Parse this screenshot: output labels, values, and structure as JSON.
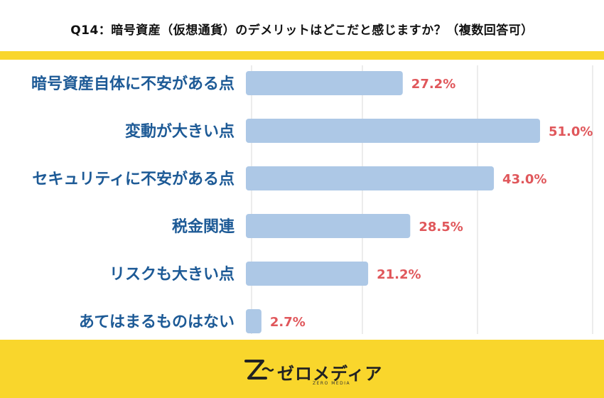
{
  "header": {
    "title": "Q14：暗号資産（仮想通貨）のデメリットはどこだと感じますか？（複数回答可）"
  },
  "brand": {
    "name": "ゼロメディア",
    "sub": "ZERO MEDIA"
  },
  "colors": {
    "accent_yellow": "#f9d62c",
    "bar": "#adc8e6",
    "category_text": "#1d5a96",
    "value_text": "#e0575b",
    "grid": "#d9d9d9"
  },
  "chart_data": {
    "type": "bar",
    "orientation": "horizontal",
    "title": "",
    "xlabel": "",
    "ylabel": "",
    "unit": "%",
    "xlim": [
      0,
      51
    ],
    "grid": true,
    "categories": [
      "暗号資産自体に不安がある点",
      "変動が大きい点",
      "セキュリティに不安がある点",
      "税金関連",
      "リスクも大きい点",
      "あてはまるものはない"
    ],
    "values": [
      27.2,
      51.0,
      43.0,
      28.5,
      21.2,
      2.7
    ],
    "value_labels": [
      "27.2%",
      "51.0%",
      "43.0%",
      "28.5%",
      "21.2%",
      "2.7%"
    ]
  }
}
